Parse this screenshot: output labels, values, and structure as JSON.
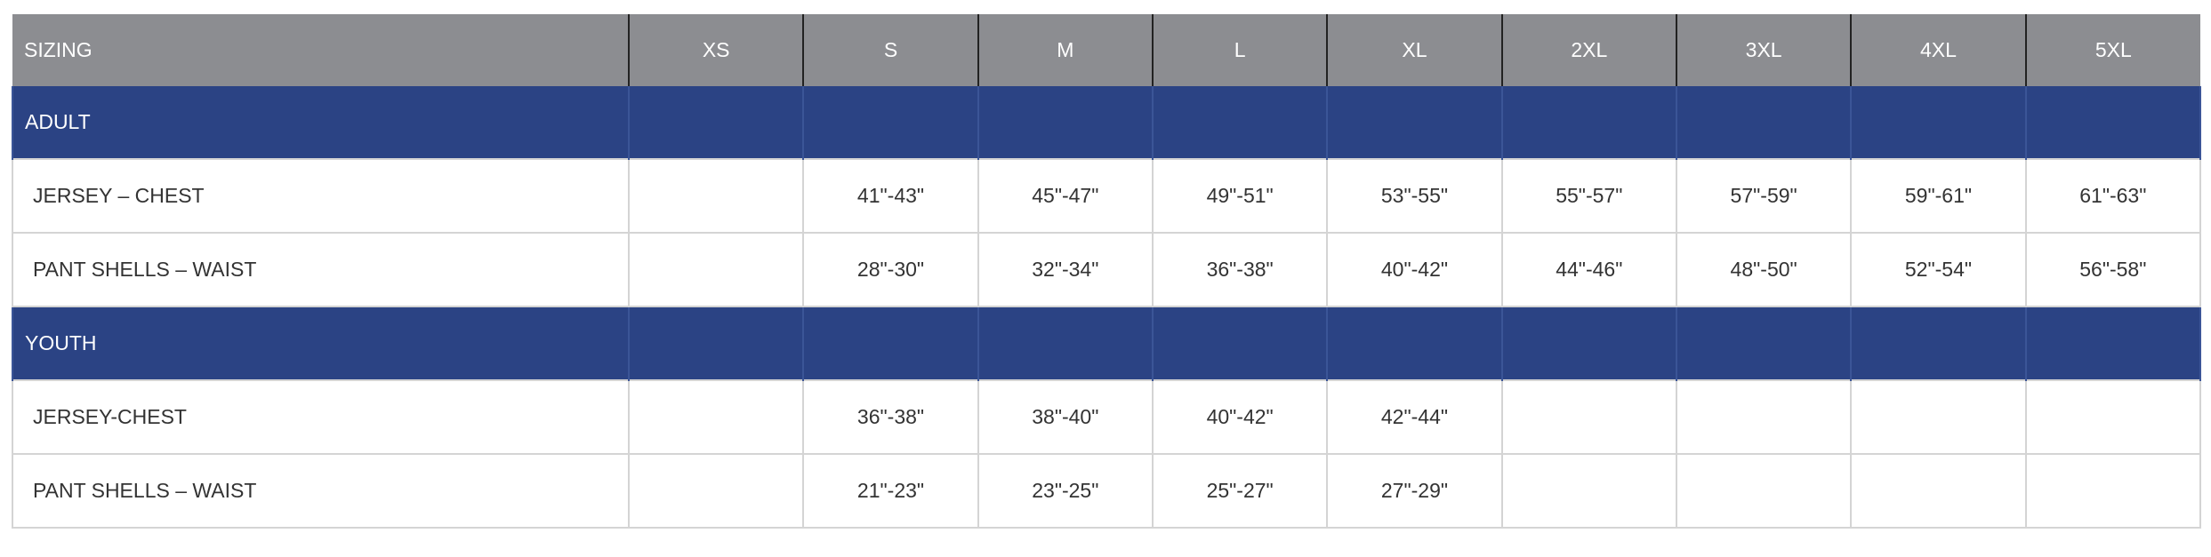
{
  "header": {
    "label": "SIZING",
    "sizes": [
      "XS",
      "S",
      "M",
      "L",
      "XL",
      "2XL",
      "3XL",
      "4XL",
      "5XL"
    ]
  },
  "colors": {
    "header_bg": "#8c8d91",
    "group_bg": "#2b4384"
  },
  "groups": [
    {
      "label": "ADULT",
      "rows": [
        {
          "label": "JERSEY – CHEST",
          "values": [
            "",
            "41\"-43\"",
            "45\"-47\"",
            "49\"-51\"",
            "53\"-55\"",
            "55\"-57\"",
            "57\"-59\"",
            "59\"-61\"",
            "61\"-63\""
          ]
        },
        {
          "label": "PANT SHELLS – WAIST",
          "values": [
            "",
            "28\"-30\"",
            "32\"-34\"",
            "36\"-38\"",
            "40\"-42\"",
            "44\"-46\"",
            "48\"-50\"",
            "52\"-54\"",
            "56\"-58\""
          ]
        }
      ]
    },
    {
      "label": "YOUTH",
      "rows": [
        {
          "label": "JERSEY-CHEST",
          "values": [
            "",
            "36\"-38\"",
            "38\"-40\"",
            "40\"-42\"",
            "42\"-44\"",
            "",
            "",
            "",
            ""
          ]
        },
        {
          "label": "PANT SHELLS – WAIST",
          "values": [
            "",
            "21\"-23\"",
            "23\"-25\"",
            "25\"-27\"",
            "27\"-29\"",
            "",
            "",
            "",
            ""
          ]
        }
      ]
    }
  ]
}
